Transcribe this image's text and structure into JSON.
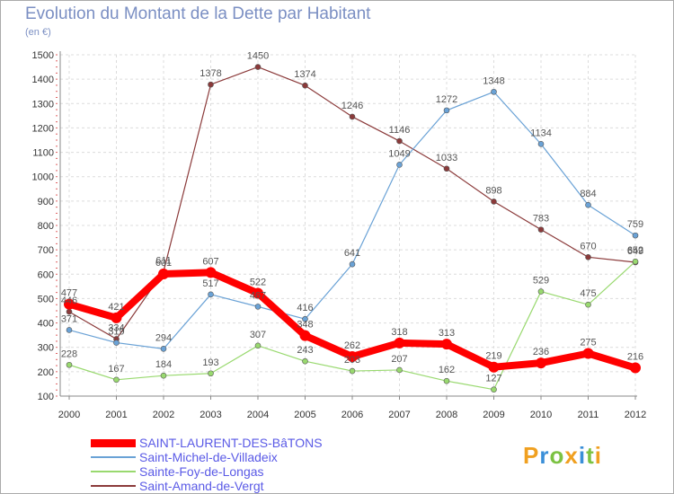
{
  "title": "Evolution du Montant de la Dette par Habitant",
  "subtitle": "(en €)",
  "logo": {
    "letters": [
      "P",
      "r",
      "o",
      "x",
      "i",
      "t",
      "i"
    ],
    "colors": [
      "#f0a020",
      "#3a8fd8",
      "#7cc242",
      "#f0a020",
      "#3a8fd8",
      "#7cc242",
      "#f0a020"
    ]
  },
  "chart_data": {
    "type": "line",
    "x": [
      "2000",
      "2001",
      "2002",
      "2003",
      "2004",
      "2005",
      "2006",
      "2007",
      "2008",
      "2009",
      "2010",
      "2011",
      "2012"
    ],
    "ylim": [
      100,
      1500
    ],
    "yticks": [
      100,
      200,
      300,
      400,
      500,
      600,
      700,
      800,
      900,
      1000,
      1100,
      1200,
      1300,
      1400,
      1500
    ],
    "grid": true,
    "legend_position": "bottom-left",
    "series": [
      {
        "name": "SAINT-LAURENT-DES-BâTONS",
        "color": "#ff0000",
        "values": [
          477,
          421,
          601,
          607,
          522,
          348,
          262,
          318,
          313,
          219,
          236,
          275,
          216
        ]
      },
      {
        "name": "Saint-Michel-de-Villadeix",
        "color": "#6aa2d6",
        "values": [
          371,
          319,
          294,
          517,
          467,
          416,
          641,
          1049,
          1272,
          1348,
          1134,
          884,
          759
        ]
      },
      {
        "name": "Sainte-Foy-de-Longas",
        "color": "#99d96f",
        "values": [
          228,
          167,
          184,
          193,
          307,
          243,
          203,
          207,
          162,
          127,
          529,
          475,
          652
        ]
      },
      {
        "name": "Saint-Amand-de-Vergt",
        "color": "#8b3a3a",
        "values": [
          446,
          334,
          611,
          1378,
          1450,
          1374,
          1246,
          1146,
          1033,
          898,
          783,
          670,
          649
        ]
      }
    ]
  }
}
